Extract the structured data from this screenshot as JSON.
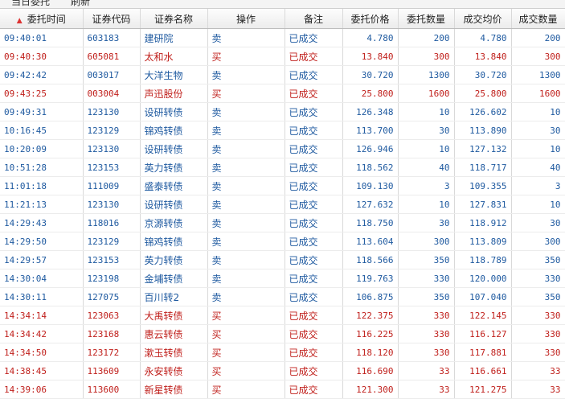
{
  "tabs": [
    "当日委托",
    "刷新"
  ],
  "sort_icon": "▲",
  "columns": [
    "委托时间",
    "证券代码",
    "证券名称",
    "操作",
    "备注",
    "委托价格",
    "委托数量",
    "成交均价",
    "成交数量"
  ],
  "colors": {
    "buy": "#c0201c",
    "sell": "#1f5aa0"
  },
  "rows": [
    {
      "time": "09:40:01",
      "code": "603183",
      "name": "建研院",
      "op": "卖",
      "note": "已成交",
      "price": "4.780",
      "qty": "200",
      "avg": "4.780",
      "filled": "200"
    },
    {
      "time": "09:40:30",
      "code": "605081",
      "name": "太和水",
      "op": "买",
      "note": "已成交",
      "price": "13.840",
      "qty": "300",
      "avg": "13.840",
      "filled": "300"
    },
    {
      "time": "09:42:42",
      "code": "003017",
      "name": "大洋生物",
      "op": "卖",
      "note": "已成交",
      "price": "30.720",
      "qty": "1300",
      "avg": "30.720",
      "filled": "1300"
    },
    {
      "time": "09:43:25",
      "code": "003004",
      "name": "声迅股份",
      "op": "买",
      "note": "已成交",
      "price": "25.800",
      "qty": "1600",
      "avg": "25.800",
      "filled": "1600"
    },
    {
      "time": "09:49:31",
      "code": "123130",
      "name": "设研转债",
      "op": "卖",
      "note": "已成交",
      "price": "126.348",
      "qty": "10",
      "avg": "126.602",
      "filled": "10"
    },
    {
      "time": "10:16:45",
      "code": "123129",
      "name": "锦鸡转债",
      "op": "卖",
      "note": "已成交",
      "price": "113.700",
      "qty": "30",
      "avg": "113.890",
      "filled": "30"
    },
    {
      "time": "10:20:09",
      "code": "123130",
      "name": "设研转债",
      "op": "卖",
      "note": "已成交",
      "price": "126.946",
      "qty": "10",
      "avg": "127.132",
      "filled": "10"
    },
    {
      "time": "10:51:28",
      "code": "123153",
      "name": "英力转债",
      "op": "卖",
      "note": "已成交",
      "price": "118.562",
      "qty": "40",
      "avg": "118.717",
      "filled": "40"
    },
    {
      "time": "11:01:18",
      "code": "111009",
      "name": "盛泰转债",
      "op": "卖",
      "note": "已成交",
      "price": "109.130",
      "qty": "3",
      "avg": "109.355",
      "filled": "3"
    },
    {
      "time": "11:21:13",
      "code": "123130",
      "name": "设研转债",
      "op": "卖",
      "note": "已成交",
      "price": "127.632",
      "qty": "10",
      "avg": "127.831",
      "filled": "10"
    },
    {
      "time": "14:29:43",
      "code": "118016",
      "name": "京源转债",
      "op": "卖",
      "note": "已成交",
      "price": "118.750",
      "qty": "30",
      "avg": "118.912",
      "filled": "30"
    },
    {
      "time": "14:29:50",
      "code": "123129",
      "name": "锦鸡转债",
      "op": "卖",
      "note": "已成交",
      "price": "113.604",
      "qty": "300",
      "avg": "113.809",
      "filled": "300"
    },
    {
      "time": "14:29:57",
      "code": "123153",
      "name": "英力转债",
      "op": "卖",
      "note": "已成交",
      "price": "118.566",
      "qty": "350",
      "avg": "118.789",
      "filled": "350"
    },
    {
      "time": "14:30:04",
      "code": "123198",
      "name": "金埔转债",
      "op": "卖",
      "note": "已成交",
      "price": "119.763",
      "qty": "330",
      "avg": "120.000",
      "filled": "330"
    },
    {
      "time": "14:30:11",
      "code": "127075",
      "name": "百川转2",
      "op": "卖",
      "note": "已成交",
      "price": "106.875",
      "qty": "350",
      "avg": "107.040",
      "filled": "350"
    },
    {
      "time": "14:34:14",
      "code": "123063",
      "name": "大禹转债",
      "op": "买",
      "note": "已成交",
      "price": "122.375",
      "qty": "330",
      "avg": "122.145",
      "filled": "330"
    },
    {
      "time": "14:34:42",
      "code": "123168",
      "name": "惠云转债",
      "op": "买",
      "note": "已成交",
      "price": "116.225",
      "qty": "330",
      "avg": "116.127",
      "filled": "330"
    },
    {
      "time": "14:34:50",
      "code": "123172",
      "name": "漱玉转债",
      "op": "买",
      "note": "已成交",
      "price": "118.120",
      "qty": "330",
      "avg": "117.881",
      "filled": "330"
    },
    {
      "time": "14:38:45",
      "code": "113609",
      "name": "永安转债",
      "op": "买",
      "note": "已成交",
      "price": "116.690",
      "qty": "33",
      "avg": "116.661",
      "filled": "33"
    },
    {
      "time": "14:39:06",
      "code": "113600",
      "name": "新星转债",
      "op": "买",
      "note": "已成交",
      "price": "121.300",
      "qty": "33",
      "avg": "121.275",
      "filled": "33"
    }
  ]
}
